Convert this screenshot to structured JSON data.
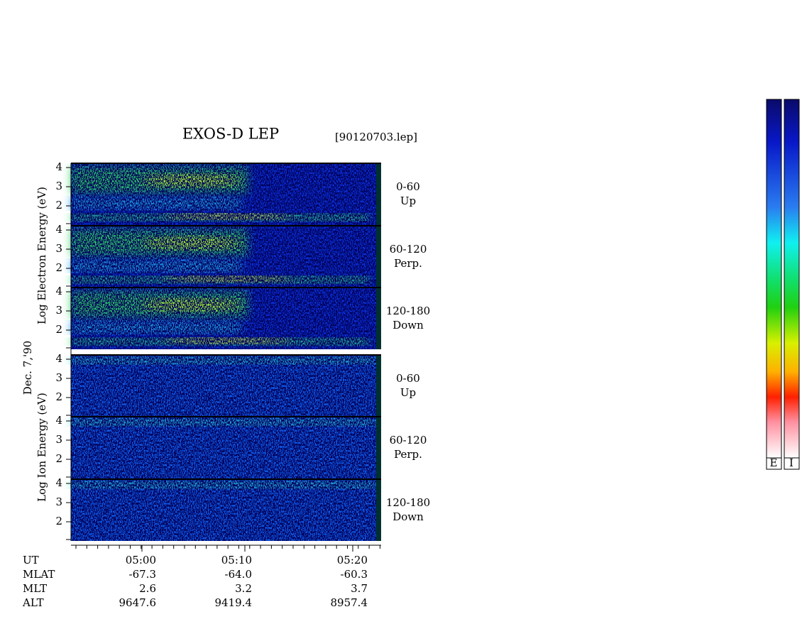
{
  "header": {
    "title": "EXOS-D LEP",
    "file": "[90120703.lep]"
  },
  "date": "Dec. 7,'90",
  "electron": {
    "axis_label": "Log Electron Energy (eV)",
    "panels": [
      {
        "range": "0-60",
        "direction": "Up",
        "ticks": [
          "4",
          "3",
          "2"
        ]
      },
      {
        "range": "60-120",
        "direction": "Perp.",
        "ticks": [
          "4",
          "3",
          "2"
        ]
      },
      {
        "range": "120-180",
        "direction": "Down",
        "ticks": [
          "4",
          "3",
          "2"
        ]
      }
    ]
  },
  "ion": {
    "axis_label": "Log Ion Energy (eV)",
    "panels": [
      {
        "range": "0-60",
        "direction": "Up",
        "ticks": [
          "4",
          "3",
          "2"
        ]
      },
      {
        "range": "60-120",
        "direction": "Perp.",
        "ticks": [
          "4",
          "3",
          "2"
        ]
      },
      {
        "range": "120-180",
        "direction": "Down",
        "ticks": [
          "4",
          "3",
          "2"
        ]
      }
    ]
  },
  "ephemeris": {
    "header": "UT",
    "times": [
      "05:00",
      "05:10",
      "05:20"
    ],
    "rows": [
      {
        "name": "MLAT",
        "values": [
          "-67.3",
          "-64.0",
          "-60.3"
        ]
      },
      {
        "name": "MLT",
        "values": [
          "2.6",
          "3.2",
          "3.7"
        ]
      },
      {
        "name": "ALT",
        "values": [
          "9647.6",
          "9419.4",
          "8957.4"
        ]
      }
    ]
  },
  "colorbars": [
    "E",
    "I"
  ]
}
